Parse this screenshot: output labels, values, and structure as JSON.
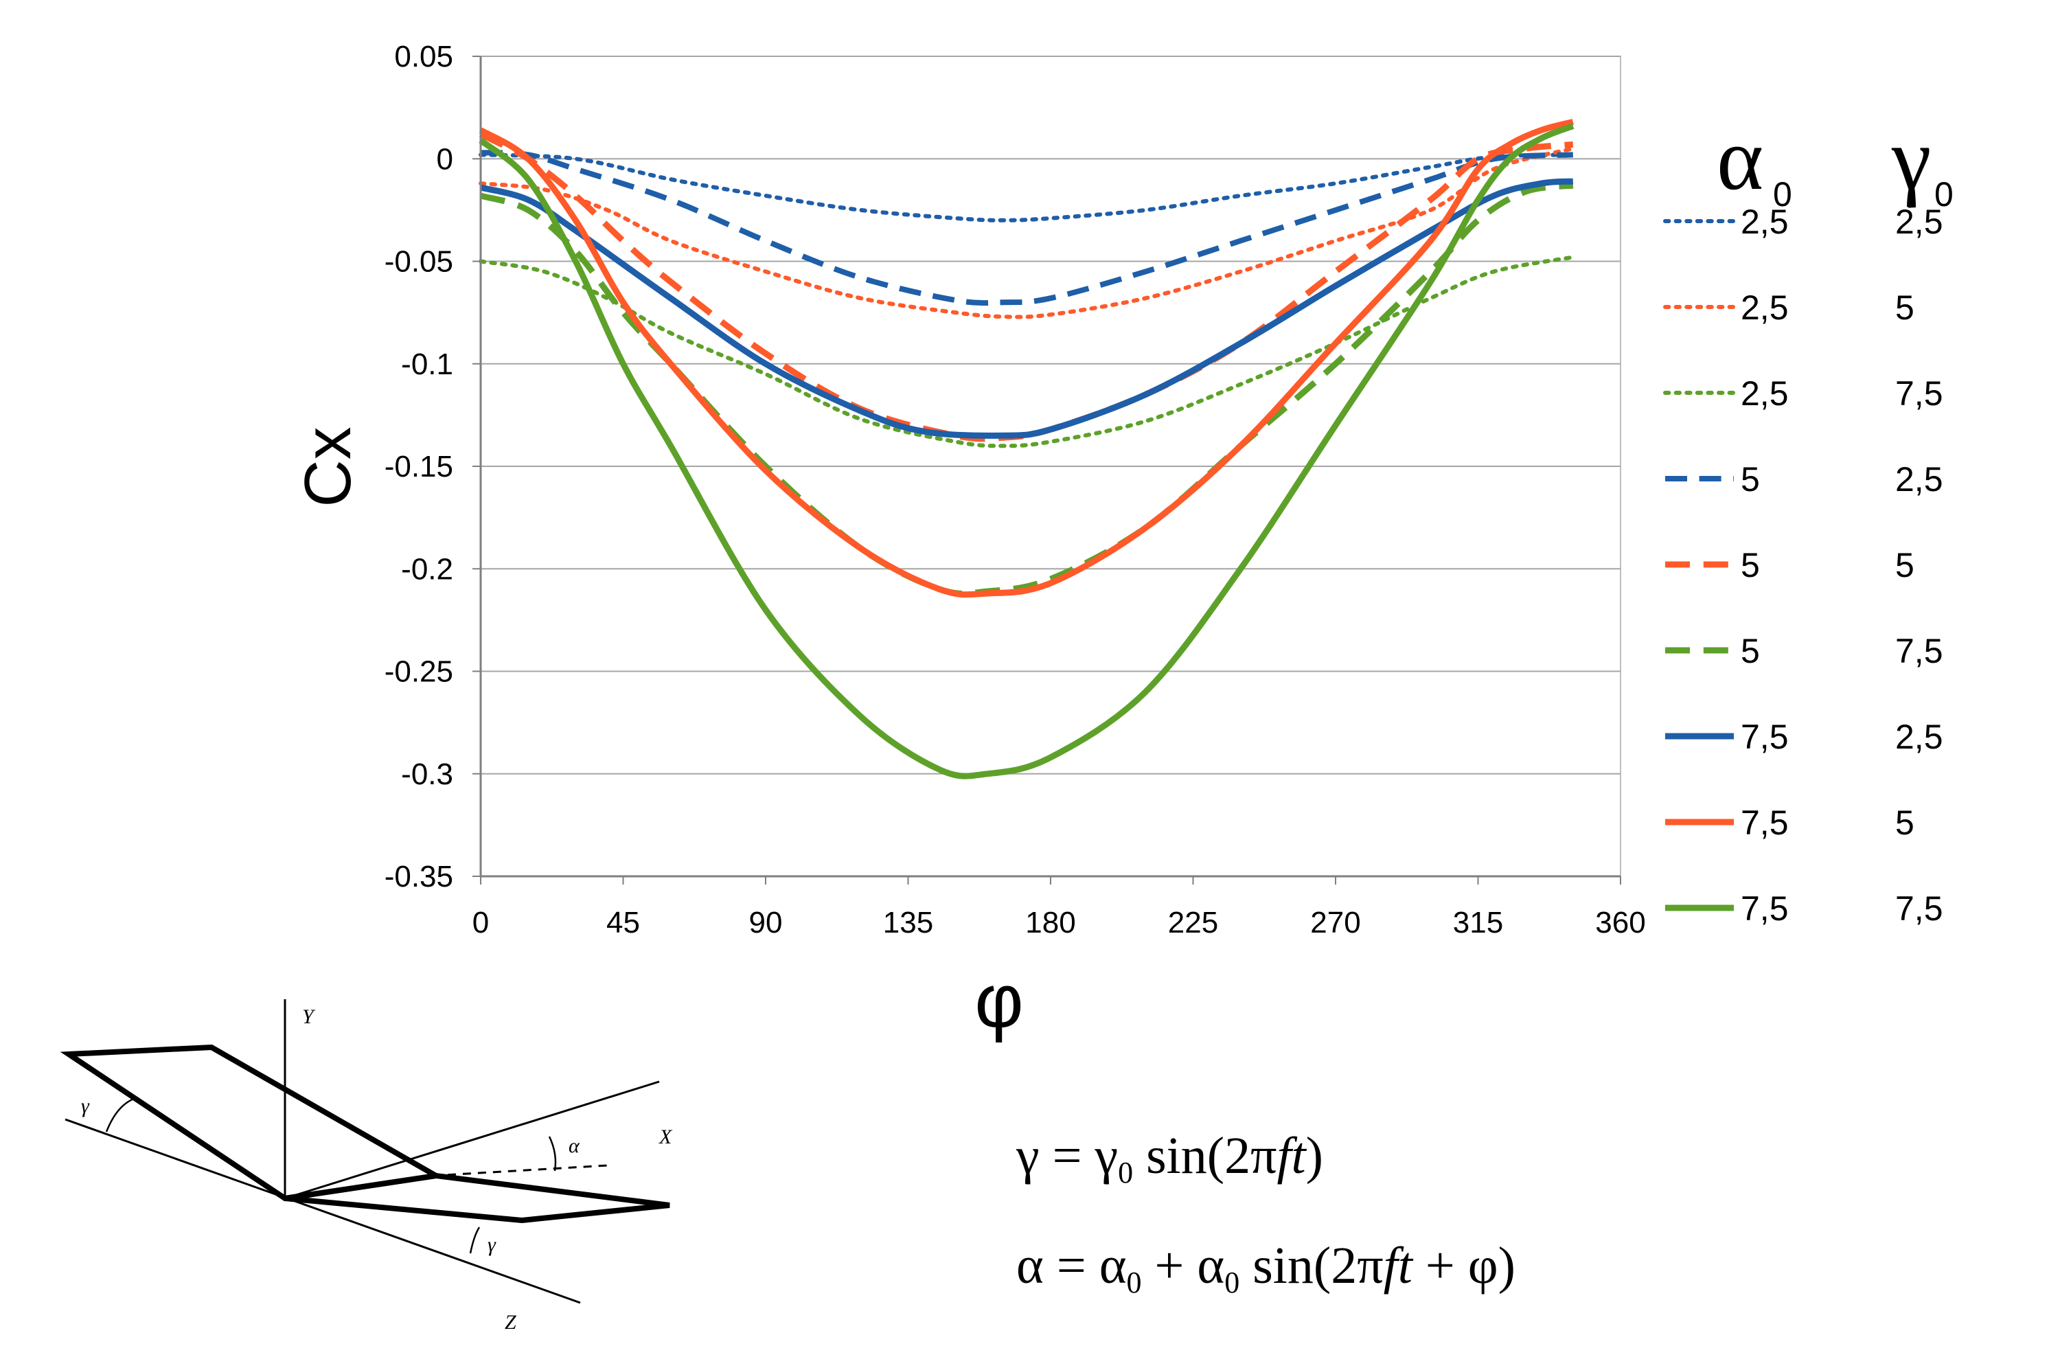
{
  "chart_data": {
    "type": "line",
    "title": "",
    "xlabel": "φ",
    "ylabel": "Cx",
    "xlim": [
      0,
      360
    ],
    "ylim": [
      -0.35,
      0.05
    ],
    "xticks": [
      "0",
      "45",
      "90",
      "135",
      "180",
      "225",
      "270",
      "315",
      "360"
    ],
    "yticks": [
      "0.05",
      "0",
      "-0.05",
      "-0.1",
      "-0.15",
      "-0.2",
      "-0.25",
      "-0.3",
      "-0.35"
    ],
    "grid": "horizontal",
    "legend_position": "right",
    "legend_header": {
      "alpha_symbol": "α",
      "gamma_symbol": "γ",
      "subscript": "0"
    },
    "series": [
      {
        "alpha0": "2,5",
        "gamma0": "2,5",
        "color": "#1f5ea8",
        "dash": "dotted",
        "width": "thin",
        "points": [
          [
            0,
            0.002
          ],
          [
            30,
            0.0
          ],
          [
            60,
            -0.01
          ],
          [
            90,
            -0.018
          ],
          [
            120,
            -0.025
          ],
          [
            150,
            -0.029
          ],
          [
            165,
            -0.03
          ],
          [
            180,
            -0.029
          ],
          [
            210,
            -0.025
          ],
          [
            240,
            -0.018
          ],
          [
            270,
            -0.012
          ],
          [
            300,
            -0.004
          ],
          [
            320,
            0.001
          ],
          [
            345,
            0.002
          ]
        ]
      },
      {
        "alpha0": "2,5",
        "gamma0": "5",
        "color": "#ff5a2a",
        "dash": "dotted",
        "width": "thin",
        "points": [
          [
            0,
            -0.012
          ],
          [
            20,
            -0.015
          ],
          [
            40,
            -0.025
          ],
          [
            60,
            -0.04
          ],
          [
            90,
            -0.055
          ],
          [
            120,
            -0.068
          ],
          [
            150,
            -0.075
          ],
          [
            165,
            -0.077
          ],
          [
            180,
            -0.076
          ],
          [
            210,
            -0.068
          ],
          [
            240,
            -0.055
          ],
          [
            270,
            -0.04
          ],
          [
            300,
            -0.025
          ],
          [
            320,
            -0.005
          ],
          [
            345,
            0.005
          ]
        ]
      },
      {
        "alpha0": "2,5",
        "gamma0": "7,5",
        "color": "#5ea12a",
        "dash": "dotted",
        "width": "thin",
        "points": [
          [
            0,
            -0.05
          ],
          [
            20,
            -0.055
          ],
          [
            40,
            -0.068
          ],
          [
            60,
            -0.085
          ],
          [
            90,
            -0.105
          ],
          [
            120,
            -0.127
          ],
          [
            150,
            -0.138
          ],
          [
            165,
            -0.14
          ],
          [
            180,
            -0.138
          ],
          [
            210,
            -0.128
          ],
          [
            240,
            -0.11
          ],
          [
            270,
            -0.09
          ],
          [
            300,
            -0.068
          ],
          [
            320,
            -0.055
          ],
          [
            345,
            -0.048
          ]
        ]
      },
      {
        "alpha0": "5",
        "gamma0": "2,5",
        "color": "#1f5ea8",
        "dash": "dashed",
        "width": "medium",
        "points": [
          [
            0,
            0.003
          ],
          [
            15,
            0.002
          ],
          [
            30,
            -0.005
          ],
          [
            60,
            -0.02
          ],
          [
            90,
            -0.04
          ],
          [
            120,
            -0.058
          ],
          [
            150,
            -0.069
          ],
          [
            165,
            -0.07
          ],
          [
            180,
            -0.068
          ],
          [
            210,
            -0.055
          ],
          [
            240,
            -0.04
          ],
          [
            270,
            -0.025
          ],
          [
            300,
            -0.01
          ],
          [
            320,
            0.0
          ],
          [
            345,
            0.002
          ]
        ]
      },
      {
        "alpha0": "5",
        "gamma0": "5",
        "color": "#ff5a2a",
        "dash": "dashed",
        "width": "thick",
        "points": [
          [
            0,
            0.012
          ],
          [
            15,
            0.0
          ],
          [
            30,
            -0.018
          ],
          [
            45,
            -0.04
          ],
          [
            60,
            -0.06
          ],
          [
            90,
            -0.095
          ],
          [
            120,
            -0.122
          ],
          [
            150,
            -0.135
          ],
          [
            165,
            -0.136
          ],
          [
            180,
            -0.132
          ],
          [
            210,
            -0.115
          ],
          [
            240,
            -0.09
          ],
          [
            270,
            -0.055
          ],
          [
            300,
            -0.02
          ],
          [
            315,
            0.0
          ],
          [
            330,
            0.005
          ],
          [
            345,
            0.007
          ]
        ]
      },
      {
        "alpha0": "5",
        "gamma0": "7,5",
        "color": "#5ea12a",
        "dash": "dashed",
        "width": "thick",
        "points": [
          [
            0,
            -0.018
          ],
          [
            15,
            -0.025
          ],
          [
            30,
            -0.045
          ],
          [
            45,
            -0.075
          ],
          [
            60,
            -0.1
          ],
          [
            90,
            -0.15
          ],
          [
            120,
            -0.19
          ],
          [
            145,
            -0.21
          ],
          [
            160,
            -0.211
          ],
          [
            180,
            -0.205
          ],
          [
            210,
            -0.18
          ],
          [
            240,
            -0.14
          ],
          [
            270,
            -0.1
          ],
          [
            300,
            -0.055
          ],
          [
            315,
            -0.03
          ],
          [
            330,
            -0.016
          ],
          [
            345,
            -0.013
          ]
        ]
      },
      {
        "alpha0": "7,5",
        "gamma0": "2,5",
        "color": "#1f5ea8",
        "dash": "solid",
        "width": "thick",
        "points": [
          [
            0,
            -0.014
          ],
          [
            15,
            -0.02
          ],
          [
            30,
            -0.035
          ],
          [
            60,
            -0.068
          ],
          [
            90,
            -0.1
          ],
          [
            120,
            -0.123
          ],
          [
            140,
            -0.133
          ],
          [
            165,
            -0.135
          ],
          [
            180,
            -0.132
          ],
          [
            210,
            -0.115
          ],
          [
            240,
            -0.09
          ],
          [
            270,
            -0.062
          ],
          [
            300,
            -0.035
          ],
          [
            320,
            -0.018
          ],
          [
            335,
            -0.012
          ],
          [
            345,
            -0.011
          ]
        ]
      },
      {
        "alpha0": "7,5",
        "gamma0": "5",
        "color": "#ff5a2a",
        "dash": "solid",
        "width": "thick",
        "points": [
          [
            0,
            0.014
          ],
          [
            15,
            0.0
          ],
          [
            30,
            -0.03
          ],
          [
            45,
            -0.07
          ],
          [
            60,
            -0.1
          ],
          [
            90,
            -0.152
          ],
          [
            120,
            -0.19
          ],
          [
            145,
            -0.21
          ],
          [
            160,
            -0.212
          ],
          [
            180,
            -0.207
          ],
          [
            210,
            -0.18
          ],
          [
            240,
            -0.14
          ],
          [
            270,
            -0.09
          ],
          [
            300,
            -0.04
          ],
          [
            315,
            -0.005
          ],
          [
            325,
            0.007
          ],
          [
            335,
            0.014
          ],
          [
            345,
            0.018
          ]
        ]
      },
      {
        "alpha0": "7,5",
        "gamma0": "7,5",
        "color": "#5ea12a",
        "dash": "solid",
        "width": "thick",
        "points": [
          [
            0,
            0.009
          ],
          [
            15,
            -0.01
          ],
          [
            30,
            -0.05
          ],
          [
            45,
            -0.1
          ],
          [
            60,
            -0.14
          ],
          [
            90,
            -0.22
          ],
          [
            120,
            -0.272
          ],
          [
            145,
            -0.298
          ],
          [
            160,
            -0.3
          ],
          [
            180,
            -0.292
          ],
          [
            210,
            -0.26
          ],
          [
            240,
            -0.2
          ],
          [
            270,
            -0.13
          ],
          [
            300,
            -0.06
          ],
          [
            315,
            -0.02
          ],
          [
            325,
            0.0
          ],
          [
            335,
            0.01
          ],
          [
            345,
            0.016
          ]
        ]
      }
    ]
  },
  "diagram": {
    "labels": {
      "y_axis": "Y",
      "x_axis": "X",
      "z_axis": "Z",
      "alpha": "α",
      "gamma_top": "γ",
      "gamma_bottom": "γ"
    }
  },
  "formulas": {
    "line1": {
      "lhs": "γ",
      "eq": " = ",
      "sym": "γ",
      "sub": "0",
      "fn": " sin(2π",
      "var": "ft",
      "close": ")"
    },
    "line2": {
      "lhs": "α",
      "eq": " = ",
      "sym1": "α",
      "sub1": "0",
      "plus": " + ",
      "sym2": "α",
      "sub2": "0",
      "fn": " sin(2π",
      "var": "ft",
      "rest": " + φ)"
    }
  }
}
